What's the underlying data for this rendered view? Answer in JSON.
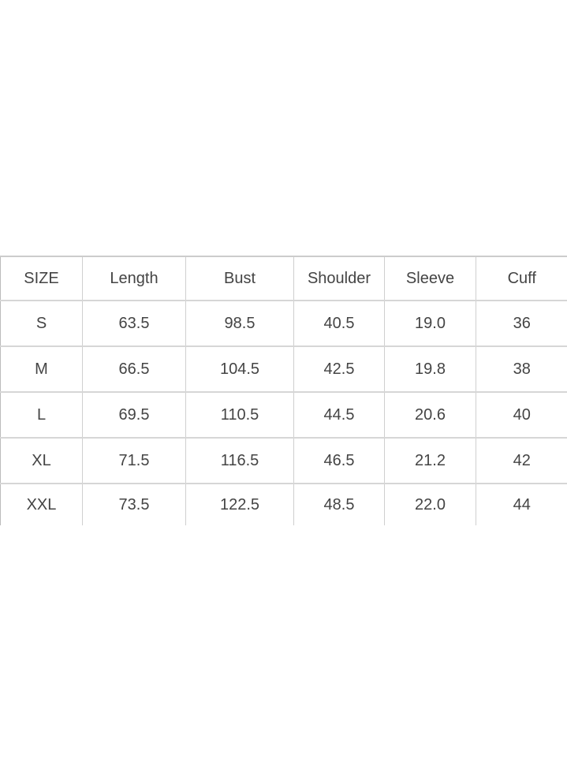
{
  "table": {
    "headers": [
      "SIZE",
      "Length",
      "Bust",
      "Shoulder",
      "Sleeve",
      "Cuff"
    ],
    "rows": [
      [
        "S",
        "63.5",
        "98.5",
        "40.5",
        "19.0",
        "36"
      ],
      [
        "M",
        "66.5",
        "104.5",
        "42.5",
        "19.8",
        "38"
      ],
      [
        "L",
        "69.5",
        "110.5",
        "44.5",
        "20.6",
        "40"
      ],
      [
        "XL",
        "71.5",
        "116.5",
        "46.5",
        "21.2",
        "42"
      ],
      [
        "XXL",
        "73.5",
        "122.5",
        "48.5",
        "22.0",
        "44"
      ]
    ]
  }
}
